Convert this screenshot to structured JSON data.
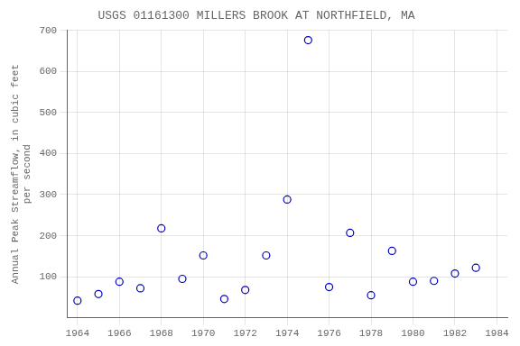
{
  "chart_data": {
    "type": "scatter",
    "title": "USGS 01161300 MILLERS BROOK AT NORTHFIELD, MA",
    "ylabel": "Annual Peak Streamflow, in cubic feet\nper second",
    "x": [
      1964,
      1965,
      1966,
      1967,
      1968,
      1969,
      1970,
      1971,
      1972,
      1973,
      1974,
      1975,
      1976,
      1977,
      1978,
      1979,
      1980,
      1981,
      1982,
      1983
    ],
    "values": [
      42,
      58,
      88,
      72,
      218,
      95,
      152,
      46,
      68,
      152,
      288,
      676,
      75,
      207,
      55,
      163,
      88,
      90,
      108,
      122
    ],
    "color": "#0000bb",
    "marker": "circle",
    "xlim": [
      1963.5,
      1984.5
    ],
    "ylim": [
      0,
      700
    ],
    "xticks": [
      1964,
      1966,
      1968,
      1970,
      1972,
      1974,
      1976,
      1978,
      1980,
      1982,
      1984
    ],
    "yticks": [
      100,
      200,
      300,
      400,
      500,
      600,
      700
    ],
    "grid": true
  }
}
